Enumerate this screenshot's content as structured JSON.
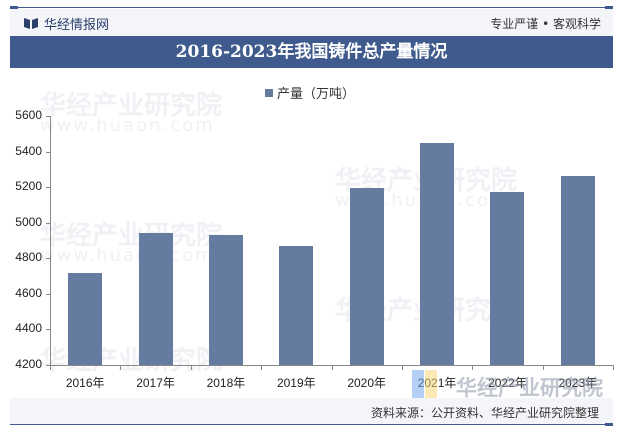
{
  "header": {
    "brand": "华经情报网",
    "slogan": "专业严谨 • 客观科学"
  },
  "title": "2016-2023年我国铸件总产量情况",
  "legend": {
    "label": "产量（万吨）",
    "color": "#667ba0"
  },
  "footer": {
    "source": "资料来源：公开资料、华经产业研究院整理"
  },
  "watermark": {
    "text": "华经产业研究院",
    "url": "www.huaon.com"
  },
  "colors": {
    "bar": "#667ba0",
    "title_bg": "#3f5a8c",
    "header_bg": "#f3f5f9"
  },
  "chart_data": {
    "type": "bar",
    "title": "2016-2023年我国铸件总产量情况",
    "xlabel": "",
    "ylabel": "",
    "categories": [
      "2016年",
      "2017年",
      "2018年",
      "2019年",
      "2020年",
      "2021年",
      "2022年",
      "2023年"
    ],
    "series": [
      {
        "name": "产量（万吨）",
        "values": [
          4720,
          4940,
          4930,
          4870,
          5195,
          5450,
          5170,
          5260
        ]
      }
    ],
    "ylim": [
      4200,
      5600
    ],
    "yticks": [
      4200,
      4400,
      4600,
      4800,
      5000,
      5200,
      5400,
      5600
    ],
    "grid": false,
    "legend_position": "top"
  }
}
